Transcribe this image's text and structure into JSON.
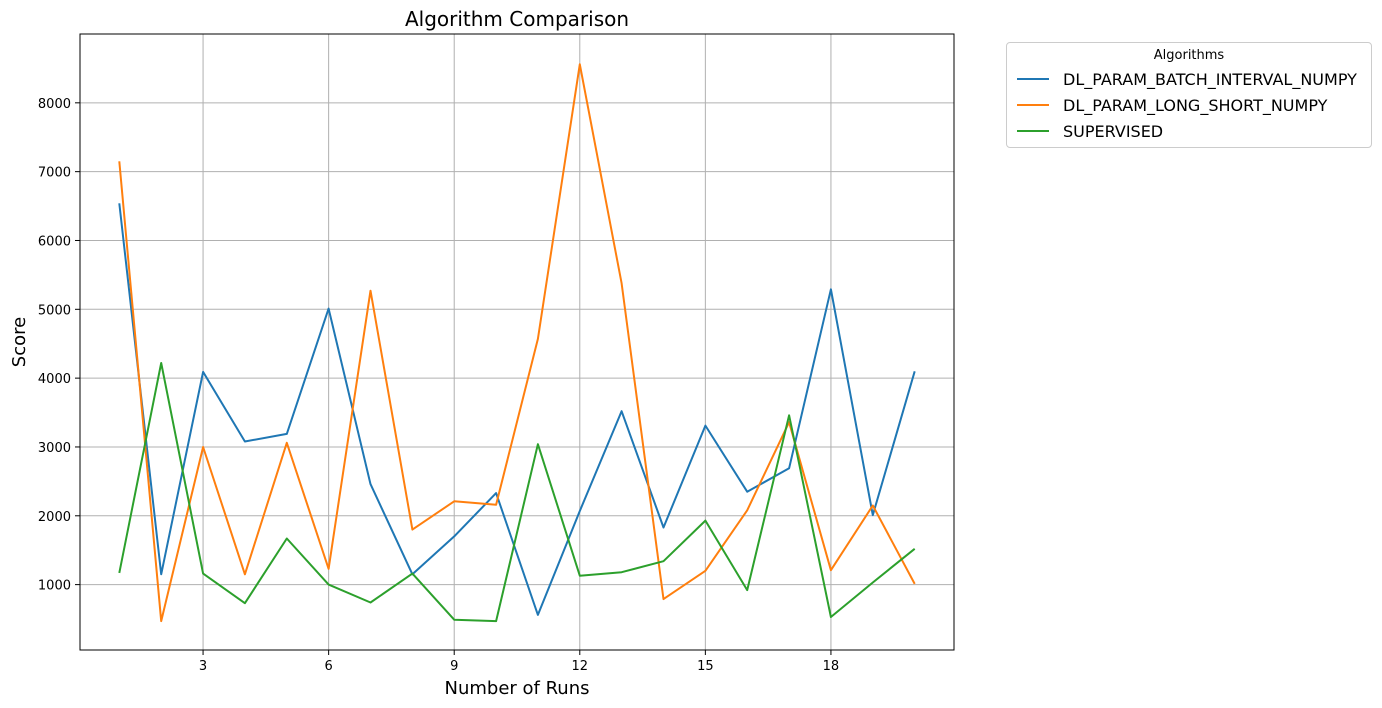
{
  "chart_data": {
    "type": "line",
    "title": "Algorithm Comparison",
    "xlabel": "Number of Runs",
    "ylabel": "Score",
    "x": [
      1,
      2,
      3,
      4,
      5,
      6,
      7,
      8,
      9,
      10,
      11,
      12,
      13,
      14,
      15,
      16,
      17,
      18,
      19,
      20
    ],
    "xlim": [
      0.06,
      20.94
    ],
    "ylim": [
      50,
      9000
    ],
    "xticks": [
      3,
      6,
      9,
      12,
      15,
      18
    ],
    "yticks": [
      1000,
      2000,
      3000,
      4000,
      5000,
      6000,
      7000,
      8000
    ],
    "grid": true,
    "legend": {
      "title": "Algorithms",
      "placement": "outside-top-right"
    },
    "series": [
      {
        "name": "DL_PARAM_BATCH_INTERVAL_NUMPY",
        "color": "#1f77b4",
        "values": [
          6540,
          1150,
          4090,
          3080,
          3190,
          5010,
          2460,
          1150,
          1700,
          2330,
          560,
          2070,
          3520,
          1830,
          3310,
          2350,
          2690,
          5290,
          2010,
          4100
        ]
      },
      {
        "name": "DL_PARAM_LONG_SHORT_NUMPY",
        "color": "#ff7f0e",
        "values": [
          7150,
          470,
          3000,
          1150,
          3060,
          1230,
          5270,
          1800,
          2210,
          2160,
          4570,
          8560,
          5380,
          790,
          1200,
          2080,
          3360,
          1210,
          2150,
          1010
        ]
      },
      {
        "name": "SUPERVISED",
        "color": "#2ca02c",
        "values": [
          1170,
          4220,
          1160,
          730,
          1670,
          1000,
          740,
          1160,
          490,
          470,
          3040,
          1130,
          1180,
          1340,
          1930,
          920,
          3460,
          530,
          1030,
          1520
        ]
      }
    ]
  }
}
